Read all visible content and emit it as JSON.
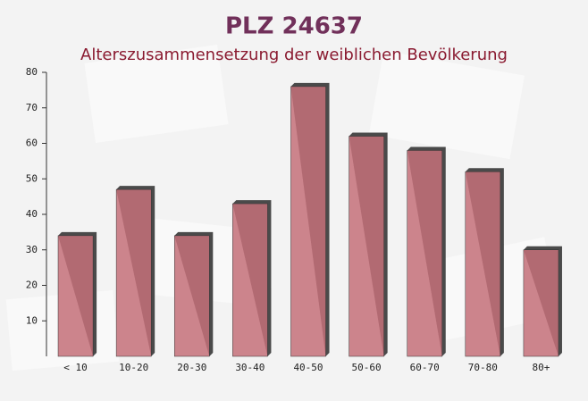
{
  "chart_data": {
    "type": "bar",
    "title": "PLZ 24637",
    "subtitle": "Alterszusammensetzung der weiblichen Bevölkerung",
    "categories": [
      "< 10",
      "10-20",
      "20-30",
      "30-40",
      "40-50",
      "50-60",
      "60-70",
      "70-80",
      "80+"
    ],
    "values": [
      34,
      47,
      34,
      43,
      76,
      62,
      58,
      52,
      30
    ],
    "color": "#c47079",
    "ylim": [
      0,
      80
    ],
    "yticks": [
      10,
      20,
      30,
      40,
      50,
      60,
      70,
      80
    ]
  }
}
